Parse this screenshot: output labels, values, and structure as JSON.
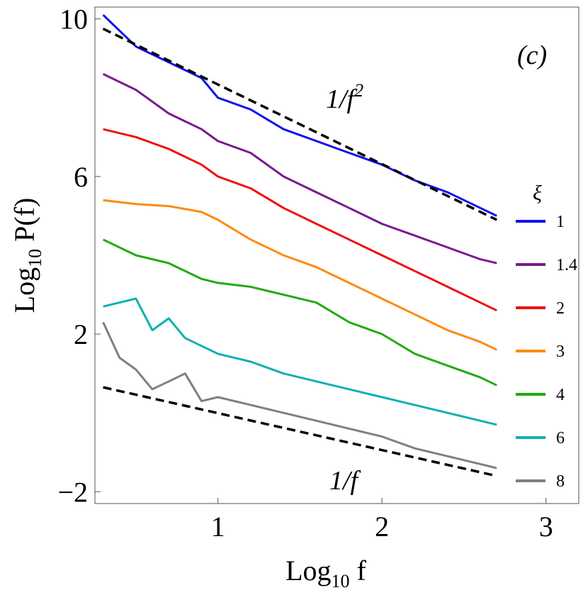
{
  "chart_data": {
    "type": "line",
    "panel_label": "(c)",
    "xlabel": {
      "base": "Log",
      "sub": "10",
      "rest": " f"
    },
    "ylabel": {
      "base": "Log",
      "sub": "10",
      "rest": " P(f)"
    },
    "xlim": [
      0.25,
      3.2
    ],
    "ylim": [
      -2.3,
      10.3
    ],
    "xticks": [
      {
        "value": 1,
        "label": "1"
      },
      {
        "value": 2,
        "label": "2"
      },
      {
        "value": 3,
        "label": "3"
      }
    ],
    "yticks": [
      {
        "value": -2,
        "label": "−2"
      },
      {
        "value": 2,
        "label": "2"
      },
      {
        "value": 6,
        "label": "6"
      },
      {
        "value": 10,
        "label": "10"
      }
    ],
    "legend_title": "ξ",
    "legend_placement": "right",
    "series": [
      {
        "name": "1",
        "color": "#1010ee",
        "x": [
          0.3,
          0.5,
          0.7,
          0.9,
          1.0,
          1.2,
          1.4,
          1.6,
          1.8,
          2.0,
          2.2,
          2.4,
          2.6,
          2.7
        ],
        "y": [
          10.1,
          9.3,
          8.9,
          8.5,
          8.0,
          7.7,
          7.2,
          6.9,
          6.6,
          6.3,
          5.9,
          5.6,
          5.2,
          5.0
        ]
      },
      {
        "name": "1.4",
        "color": "#7a1a8e",
        "x": [
          0.3,
          0.5,
          0.7,
          0.9,
          1.0,
          1.2,
          1.4,
          1.6,
          1.8,
          2.0,
          2.2,
          2.4,
          2.6,
          2.7
        ],
        "y": [
          8.6,
          8.2,
          7.6,
          7.2,
          6.9,
          6.6,
          6.0,
          5.6,
          5.2,
          4.8,
          4.5,
          4.2,
          3.9,
          3.8
        ]
      },
      {
        "name": "2",
        "color": "#ee1010",
        "x": [
          0.3,
          0.5,
          0.7,
          0.9,
          1.0,
          1.2,
          1.4,
          1.6,
          1.8,
          2.0,
          2.2,
          2.4,
          2.6,
          2.7
        ],
        "y": [
          7.2,
          7.0,
          6.7,
          6.3,
          6.0,
          5.7,
          5.2,
          4.8,
          4.4,
          4.0,
          3.6,
          3.2,
          2.8,
          2.6
        ]
      },
      {
        "name": "3",
        "color": "#ff8a10",
        "x": [
          0.3,
          0.5,
          0.7,
          0.9,
          1.0,
          1.2,
          1.4,
          1.6,
          1.8,
          2.0,
          2.2,
          2.4,
          2.6,
          2.7
        ],
        "y": [
          5.4,
          5.3,
          5.25,
          5.1,
          4.9,
          4.4,
          4.0,
          3.7,
          3.3,
          2.9,
          2.5,
          2.1,
          1.8,
          1.6
        ]
      },
      {
        "name": "4",
        "color": "#22aa10",
        "x": [
          0.3,
          0.5,
          0.7,
          0.9,
          1.0,
          1.2,
          1.4,
          1.6,
          1.8,
          2.0,
          2.2,
          2.4,
          2.6,
          2.7
        ],
        "y": [
          4.4,
          4.0,
          3.8,
          3.4,
          3.3,
          3.2,
          3.0,
          2.8,
          2.3,
          2.0,
          1.5,
          1.2,
          0.9,
          0.7
        ]
      },
      {
        "name": "6",
        "color": "#10b0b0",
        "x": [
          0.3,
          0.5,
          0.6,
          0.7,
          0.8,
          0.9,
          1.0,
          1.2,
          1.4,
          1.6,
          1.8,
          2.0,
          2.2,
          2.4,
          2.6,
          2.7
        ],
        "y": [
          2.7,
          2.9,
          2.1,
          2.4,
          1.9,
          1.7,
          1.5,
          1.3,
          1.0,
          0.8,
          0.6,
          0.4,
          0.2,
          0.0,
          -0.2,
          -0.3
        ]
      },
      {
        "name": "8",
        "color": "#808080",
        "x": [
          0.3,
          0.4,
          0.5,
          0.6,
          0.7,
          0.8,
          0.9,
          1.0,
          1.2,
          1.4,
          1.6,
          1.8,
          2.0,
          2.2,
          2.4,
          2.6,
          2.7
        ],
        "y": [
          2.3,
          1.4,
          1.1,
          0.6,
          0.8,
          1.0,
          0.3,
          0.4,
          0.2,
          0.0,
          -0.2,
          -0.4,
          -0.6,
          -0.9,
          -1.1,
          -1.3,
          -1.4
        ]
      }
    ],
    "reference_lines": [
      {
        "label": "1/f",
        "superscript": "2",
        "x": [
          0.3,
          2.7
        ],
        "y": [
          9.75,
          4.9
        ]
      },
      {
        "label": "1/f",
        "superscript": "",
        "x": [
          0.3,
          2.7
        ],
        "y": [
          0.65,
          -1.6
        ]
      }
    ]
  }
}
